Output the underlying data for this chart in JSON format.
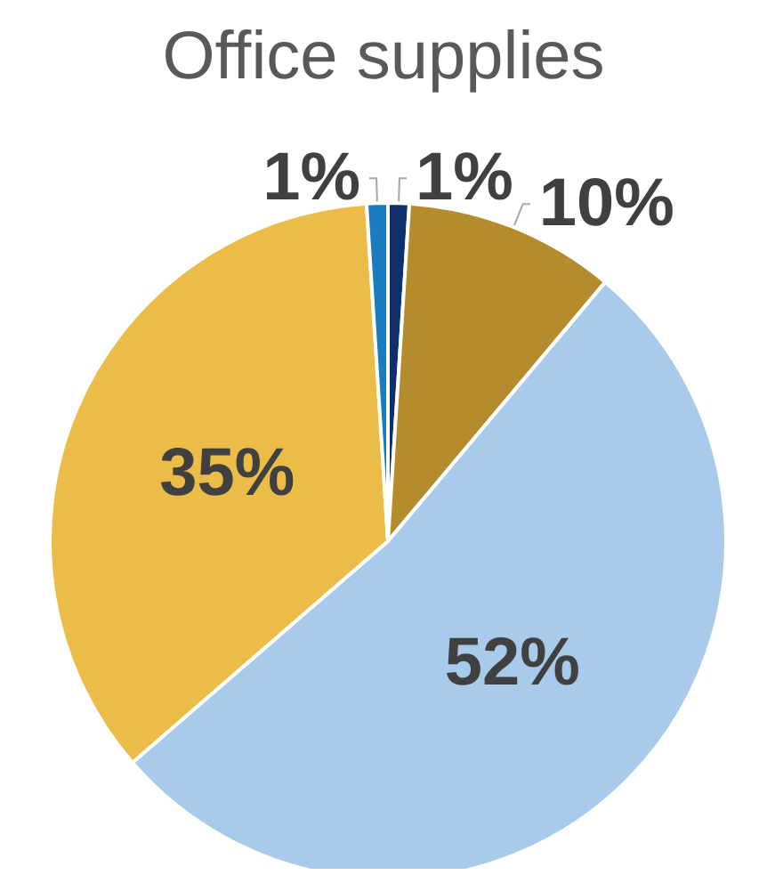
{
  "chart_data": {
    "type": "pie",
    "title": "Office supplies",
    "categories": [
      null,
      null,
      null,
      null,
      null
    ],
    "values": [
      1,
      10,
      52,
      35,
      1
    ],
    "colors": [
      "#0e2f6b",
      "#b48c2d",
      "#a9cbeb",
      "#ecbc48",
      "#1a7bc0"
    ],
    "value_labels": [
      "1%",
      "10%",
      "52%",
      "35%",
      "1%"
    ]
  }
}
